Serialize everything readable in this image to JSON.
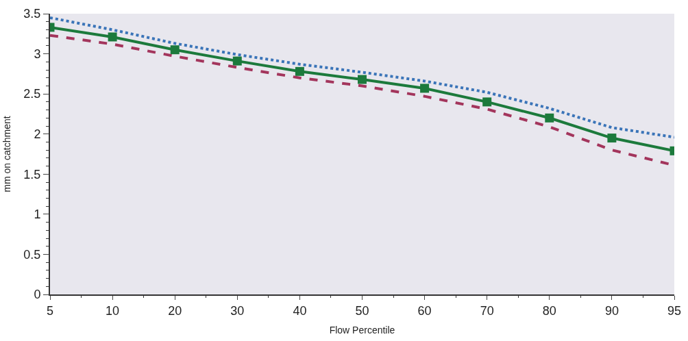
{
  "chart_data": {
    "type": "line",
    "xlabel": "Flow Percentile",
    "ylabel": "mm on catchment",
    "categories": [
      "5",
      "10",
      "20",
      "30",
      "40",
      "50",
      "60",
      "70",
      "80",
      "90",
      "95"
    ],
    "ylim": [
      0,
      3.5
    ],
    "yticks": [
      0,
      0.5,
      1,
      1.5,
      2,
      2.5,
      3,
      3.5
    ],
    "series": [
      {
        "color": "#3a74b8",
        "line_style": "dotted",
        "marker": "none",
        "values": [
          3.45,
          3.3,
          3.13,
          2.99,
          2.87,
          2.77,
          2.66,
          2.52,
          2.32,
          2.08,
          1.96
        ]
      },
      {
        "color": "#1c7a3c",
        "line_style": "solid",
        "marker": "square",
        "values": [
          3.33,
          3.21,
          3.05,
          2.91,
          2.78,
          2.68,
          2.57,
          2.4,
          2.2,
          1.95,
          1.79
        ]
      },
      {
        "color": "#a3355c",
        "line_style": "dashed",
        "marker": "none",
        "values": [
          3.23,
          3.12,
          2.97,
          2.83,
          2.7,
          2.6,
          2.47,
          2.31,
          2.09,
          1.8,
          1.61
        ]
      }
    ]
  }
}
